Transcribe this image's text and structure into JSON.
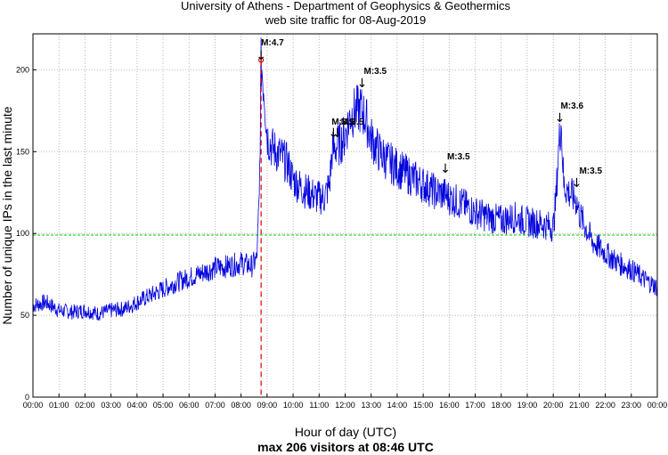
{
  "chart_data": {
    "type": "line",
    "title": "University of Athens - Department of Geophysics & Geothermics",
    "subtitle": "web site traffic for 08-Aug-2019",
    "xlabel": "Hour of day (UTC)",
    "ylabel": "Number of unique IPs in the last minute",
    "footer": "max 206 visitors at 08:46 UTC",
    "x_ticks": [
      "00:00",
      "01:00",
      "02:00",
      "03:00",
      "04:00",
      "05:00",
      "06:00",
      "07:00",
      "08:00",
      "09:00",
      "10:00",
      "11:00",
      "12:00",
      "13:00",
      "14:00",
      "15:00",
      "16:00",
      "17:00",
      "18:00",
      "19:00",
      "20:00",
      "21:00",
      "22:00",
      "23:00",
      "00:00"
    ],
    "y_ticks": [
      0,
      50,
      100,
      150,
      200
    ],
    "xlim": [
      0,
      24
    ],
    "ylim": [
      0,
      222
    ],
    "grid": true,
    "reference_line": {
      "y": 99,
      "color": "#00cc00"
    },
    "max_marker": {
      "x": 8.77,
      "y": 206,
      "color": "#dd0000"
    },
    "series": [
      {
        "color": "#0000dd",
        "x": [
          0,
          0.5,
          1,
          1.5,
          2,
          2.5,
          3,
          3.5,
          4,
          4.5,
          5,
          5.5,
          6,
          6.5,
          7,
          7.5,
          8,
          8.4,
          8.6,
          8.7,
          8.77,
          8.9,
          9.0,
          9.2,
          9.5,
          9.8,
          10,
          10.3,
          10.6,
          10.9,
          11.2,
          11.4,
          11.5,
          11.6,
          11.8,
          12.0,
          12.2,
          12.4,
          12.6,
          12.8,
          13.0,
          13.3,
          13.6,
          14,
          14.5,
          15,
          15.5,
          15.8,
          16,
          16.5,
          17,
          17.5,
          18,
          18.5,
          19,
          19.5,
          20,
          20.1,
          20.2,
          20.3,
          20.4,
          20.6,
          20.9,
          21,
          21.5,
          22,
          22.5,
          23,
          23.5,
          24
        ],
        "y": [
          56,
          58,
          53,
          52,
          53,
          51,
          53,
          54,
          58,
          62,
          66,
          70,
          73,
          76,
          79,
          80,
          82,
          80,
          84,
          120,
          206,
          185,
          160,
          152,
          148,
          142,
          133,
          128,
          125,
          122,
          122,
          130,
          150,
          152,
          155,
          160,
          172,
          175,
          176,
          170,
          158,
          150,
          145,
          140,
          135,
          130,
          125,
          124,
          122,
          118,
          113,
          110,
          108,
          110,
          107,
          106,
          104,
          120,
          150,
          170,
          130,
          125,
          120,
          112,
          95,
          88,
          82,
          78,
          72,
          67
        ]
      }
    ],
    "annotations": [
      {
        "label": "M:4.7",
        "x": 8.77
      },
      {
        "label": "M:3.5",
        "x": 11.55
      },
      {
        "label": "M:3.5",
        "x": 11.7
      },
      {
        "label": "M:3.5",
        "x": 12.65
      },
      {
        "label": "M:3.5",
        "x": 15.85
      },
      {
        "label": "M:3.6",
        "x": 20.25
      },
      {
        "label": "M:3.5",
        "x": 20.9
      }
    ]
  }
}
